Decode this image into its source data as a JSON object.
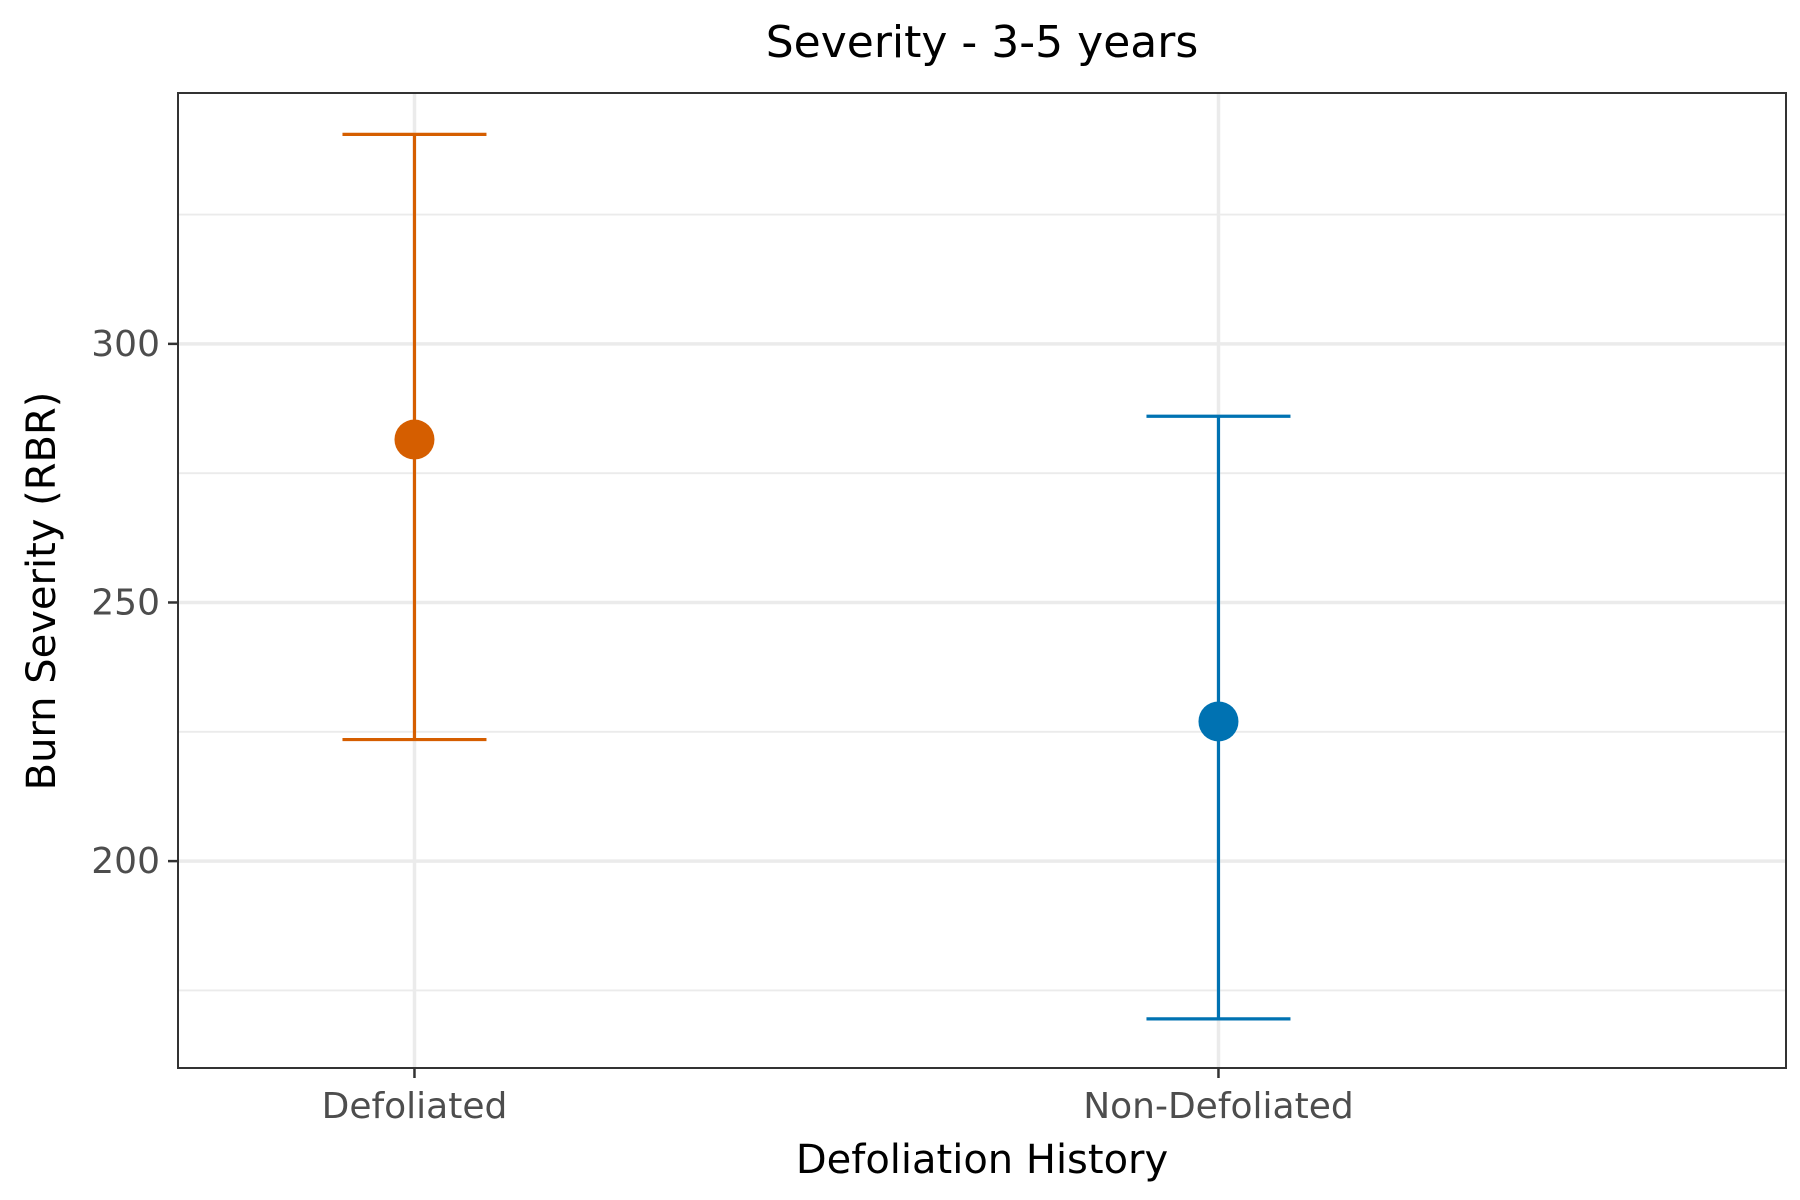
{
  "chart_data": {
    "type": "errorbar",
    "title": "Severity - 3-5 years",
    "xlabel": "Defoliation History",
    "ylabel": "Burn Severity (RBR)",
    "categories": [
      "Defoliated",
      "Non-Defoliated"
    ],
    "points": [
      {
        "category": "Defoliated",
        "mean": 281.5,
        "lower": 223.5,
        "upper": 340.5,
        "color": "#D55E00"
      },
      {
        "category": "Non-Defoliated",
        "mean": 227.0,
        "lower": 169.5,
        "upper": 286.0,
        "color": "#0072B2"
      }
    ],
    "ylim": [
      160.0,
      348.5
    ],
    "yticks": [
      200,
      250,
      300
    ],
    "grid": true,
    "legend": "none",
    "colors": {
      "grid": "#ebebeb",
      "panel_border": "#333333",
      "tick_label": "#4d4d4d"
    }
  }
}
